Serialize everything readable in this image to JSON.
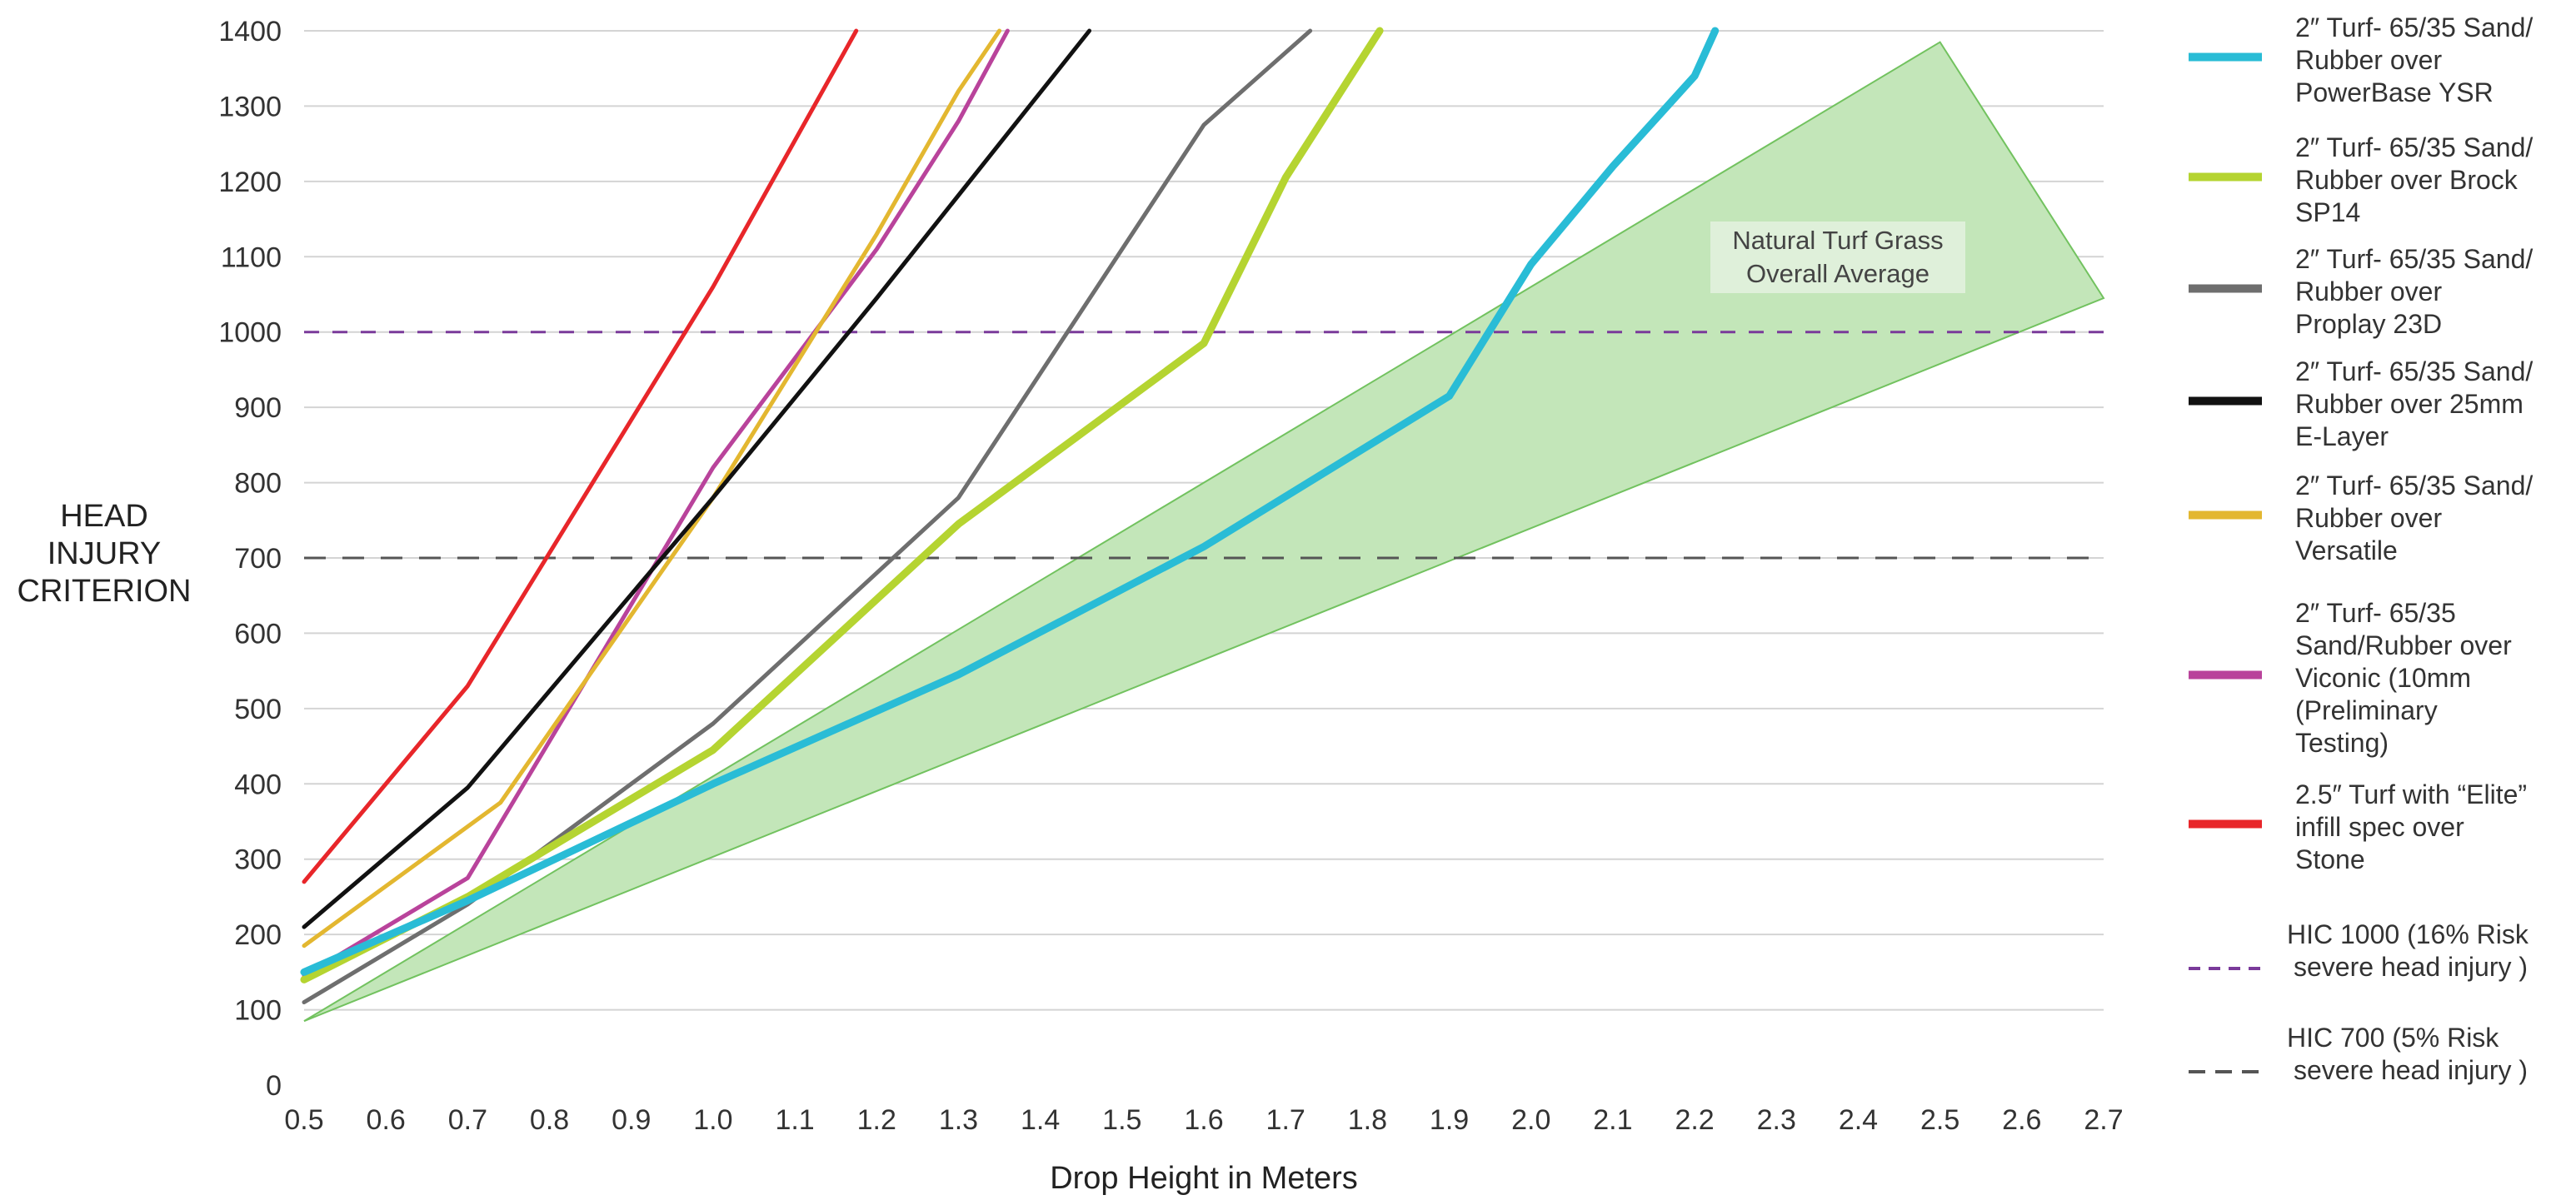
{
  "chart_data": {
    "type": "line",
    "title": "",
    "xlabel": "Drop Height in Meters",
    "ylabel_lines": [
      "HEAD",
      "INJURY",
      "CRITERION"
    ],
    "xlim": [
      0.5,
      2.7
    ],
    "ylim": [
      0,
      1400
    ],
    "xticks": [
      0.5,
      0.6,
      0.7,
      0.8,
      0.9,
      1.0,
      1.1,
      1.2,
      1.3,
      1.4,
      1.5,
      1.6,
      1.7,
      1.8,
      1.9,
      2.0,
      2.1,
      2.2,
      2.3,
      2.4,
      2.5,
      2.6,
      2.7
    ],
    "xtick_labels": [
      "0.5",
      "0.6",
      "0.7",
      "0.8",
      "0.9",
      "1.0",
      "1.1",
      "1.2",
      "1.3",
      "1.4",
      "1.5",
      "1.6",
      "1.7",
      "1.8",
      "1.9",
      "2.0",
      "2.1",
      "2.2",
      "2.3",
      "2.4",
      "2.5",
      "2.6",
      "2.7"
    ],
    "yticks": [
      0,
      100,
      200,
      300,
      400,
      500,
      600,
      700,
      800,
      900,
      1000,
      1100,
      1200,
      1300,
      1400
    ],
    "ytick_labels": [
      "0",
      "100",
      "200",
      "300",
      "400",
      "500",
      "600",
      "700",
      "800",
      "900",
      "1000",
      "1100",
      "1200",
      "1300",
      "1400"
    ],
    "grid": true,
    "legend_position": "right",
    "band": {
      "label_lines": [
        "Natural Turf Grass",
        "Overall Average"
      ],
      "color": "#72c25f",
      "fill": "#c3e6b9",
      "polygon": [
        [
          0.5,
          85
        ],
        [
          2.5,
          1385
        ],
        [
          2.7,
          1045
        ]
      ]
    },
    "series": [
      {
        "name_lines": [
          "2″ Turf- 65/35 Sand/",
          "Rubber over",
          "PowerBase YSR"
        ],
        "color": "#29bcd6",
        "width": 9,
        "x": [
          0.5,
          0.7,
          1.0,
          1.3,
          1.6,
          1.9,
          2.0,
          2.1,
          2.2,
          2.225
        ],
        "y": [
          150,
          245,
          400,
          545,
          715,
          915,
          1090,
          1220,
          1340,
          1400
        ]
      },
      {
        "name_lines": [
          "2″ Turf- 65/35 Sand/",
          "Rubber over Brock",
          "SP14"
        ],
        "color": "#b5d431",
        "width": 9,
        "x": [
          0.5,
          0.7,
          1.0,
          1.3,
          1.6,
          1.7,
          1.815
        ],
        "y": [
          140,
          250,
          445,
          745,
          985,
          1205,
          1400
        ]
      },
      {
        "name_lines": [
          "2″ Turf- 65/35 Sand/",
          "Rubber over",
          "Proplay 23D"
        ],
        "color": "#6e6e6e",
        "width": 5,
        "x": [
          0.5,
          0.7,
          1.0,
          1.3,
          1.6,
          1.73
        ],
        "y": [
          110,
          240,
          480,
          780,
          1275,
          1400
        ]
      },
      {
        "name_lines": [
          "2″ Turf- 65/35 Sand/",
          "Rubber over 25mm",
          "E-Layer"
        ],
        "color": "#111111",
        "width": 5,
        "x": [
          0.5,
          0.7,
          1.0,
          1.2,
          1.46
        ],
        "y": [
          210,
          395,
          780,
          1045,
          1400
        ]
      },
      {
        "name_lines": [
          "2″ Turf- 65/35 Sand/",
          "Rubber over",
          "Versatile"
        ],
        "color": "#e3b730",
        "width": 5,
        "x": [
          0.5,
          0.74,
          1.0,
          1.2,
          1.3,
          1.35
        ],
        "y": [
          185,
          375,
          780,
          1130,
          1320,
          1400
        ]
      },
      {
        "name_lines": [
          "2″ Turf- 65/35",
          "Sand/Rubber over",
          "Viconic (10mm",
          "(Preliminary",
          "Testing)"
        ],
        "color": "#b9439b",
        "width": 5,
        "x": [
          0.5,
          0.7,
          1.0,
          1.2,
          1.3,
          1.36
        ],
        "y": [
          145,
          275,
          820,
          1110,
          1280,
          1400
        ]
      },
      {
        "name_lines": [
          "2.5″ Turf with “Elite”",
          "infill spec over",
          "Stone"
        ],
        "color": "#e8262a",
        "width": 5,
        "x": [
          0.5,
          0.7,
          1.0,
          1.175
        ],
        "y": [
          270,
          530,
          1060,
          1400
        ]
      }
    ],
    "reference_lines": [
      {
        "name_lines": [
          "HIC 1000 (16% Risk",
          "severe head injury )"
        ],
        "y": 1000,
        "color": "#7a3a9a",
        "dash": "dashed"
      },
      {
        "name_lines": [
          "HIC 700 (5% Risk",
          "severe head injury )"
        ],
        "y": 700,
        "color": "#555555",
        "dash": "dashed"
      }
    ]
  }
}
